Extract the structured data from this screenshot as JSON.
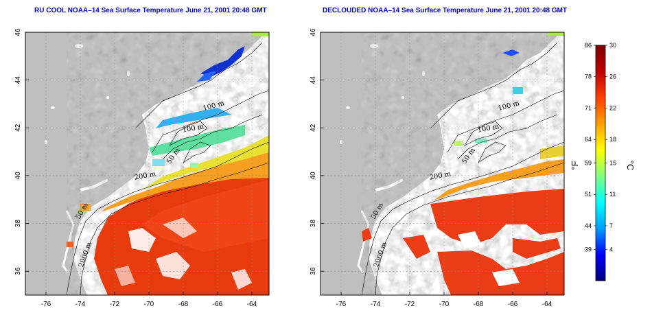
{
  "titles": {
    "left": "RU COOL NOAA–14 Sea Surface Temperature June 21, 2001 20:48 GMT",
    "right": "DECLOUDED NOAA–14 Sea Surface Temperature June 21, 2001 20:48 GMT"
  },
  "axes": {
    "lon_ticks": [
      "-76",
      "-74",
      "-72",
      "-70",
      "-68",
      "-66",
      "-64"
    ],
    "lat_ticks": [
      "36",
      "38",
      "40",
      "42",
      "44",
      "46"
    ],
    "lon_range": [
      -77.2,
      -63.0
    ],
    "lat_range": [
      35.0,
      46.0
    ]
  },
  "contours": {
    "left": [
      "100 m",
      "100 m",
      "50 m",
      "200 m",
      "50 m",
      "2000 m"
    ],
    "right": [
      "100 m",
      "100 m",
      "50 m",
      "200 m",
      "50 m",
      "2000 m"
    ]
  },
  "colorbar": {
    "fahrenheit_ticks": [
      "86",
      "78",
      "71",
      "64",
      "59",
      "51",
      "44",
      "39"
    ],
    "celsius_ticks": [
      "30",
      "26",
      "22",
      "18",
      "15",
      "11",
      "7",
      "4"
    ],
    "unit_f": "°F",
    "unit_c": "°C",
    "range_c": [
      0,
      30
    ],
    "colors": [
      "#000080",
      "#0000ff",
      "#00a0ff",
      "#00ffff",
      "#80ff80",
      "#ffff00",
      "#ffa000",
      "#ff4000",
      "#c00000",
      "#800000"
    ]
  },
  "colors": {
    "land": "#bfbfbf",
    "cloud": "#ffffff",
    "gridline": "#888888"
  }
}
